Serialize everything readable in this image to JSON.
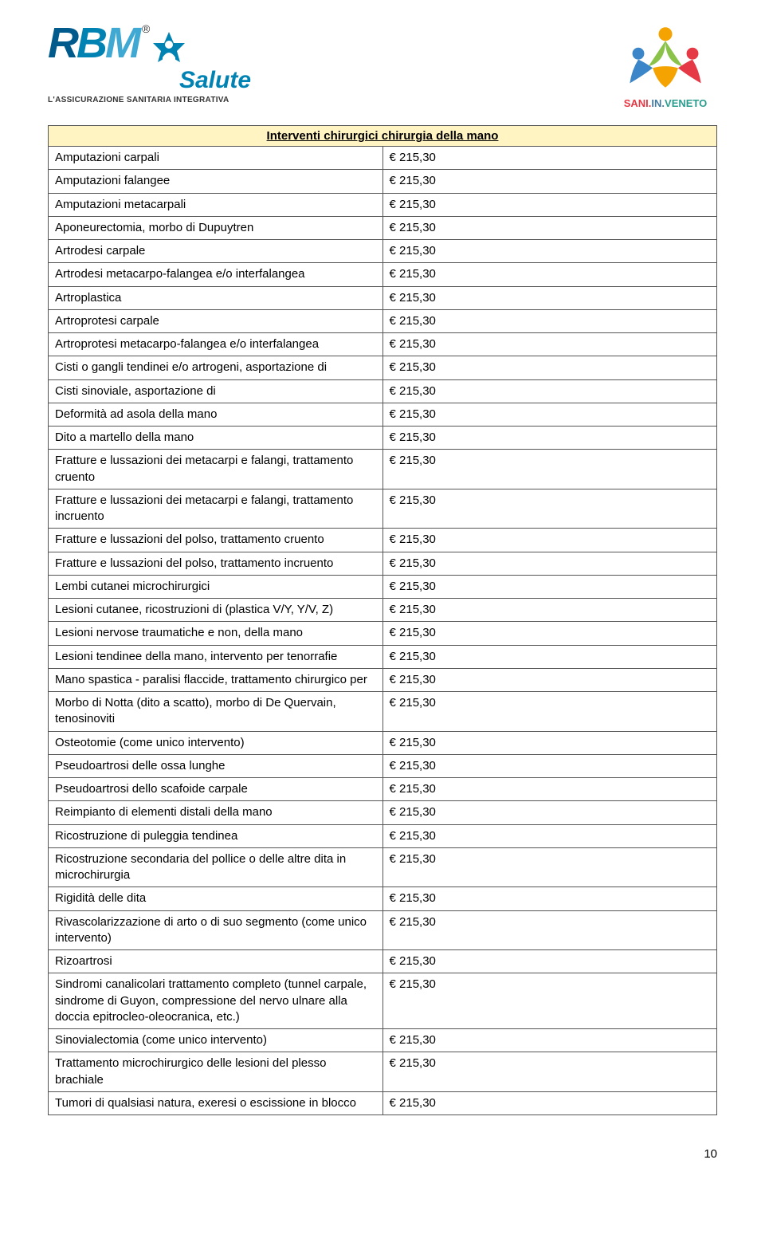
{
  "header": {
    "logo_left": {
      "letters": [
        "R",
        "B",
        "M"
      ],
      "salute": "Salute",
      "tagline": "L'ASSICURAZIONE SANITARIA INTEGRATIVA",
      "reg": "®"
    },
    "logo_right": {
      "text_parts": [
        "SANI.",
        "IN.",
        "VENETO"
      ]
    }
  },
  "table": {
    "section_title": "Interventi chirurgici chirurgia della mano",
    "col_widths": {
      "label": "auto",
      "value": "130px"
    },
    "header_bg": "#fff4c2",
    "border_color": "#555555",
    "rows": [
      {
        "label": "Amputazioni carpali",
        "value": "€ 215,30"
      },
      {
        "label": "Amputazioni falangee",
        "value": "€ 215,30"
      },
      {
        "label": "Amputazioni metacarpali",
        "value": "€ 215,30"
      },
      {
        "label": "Aponeurectomia, morbo di Dupuytren",
        "value": "€ 215,30"
      },
      {
        "label": "Artrodesi carpale",
        "value": "€ 215,30"
      },
      {
        "label": "Artrodesi metacarpo-falangea e/o interfalangea",
        "value": "€ 215,30"
      },
      {
        "label": "Artroplastica",
        "value": "€ 215,30"
      },
      {
        "label": "Artroprotesi carpale",
        "value": "€ 215,30"
      },
      {
        "label": "Artroprotesi metacarpo-falangea e/o interfalangea",
        "value": "€ 215,30"
      },
      {
        "label": "Cisti o gangli tendinei e/o artrogeni, asportazione di",
        "value": "€ 215,30"
      },
      {
        "label": "Cisti sinoviale, asportazione di",
        "value": "€ 215,30"
      },
      {
        "label": "Deformità ad asola della mano",
        "value": "€ 215,30"
      },
      {
        "label": "Dito a martello della mano",
        "value": "€ 215,30"
      },
      {
        "label": "Fratture e lussazioni dei metacarpi e falangi, trattamento cruento",
        "value": "€ 215,30"
      },
      {
        "label": "Fratture e lussazioni dei metacarpi e falangi, trattamento incruento",
        "value": "€ 215,30"
      },
      {
        "label": "Fratture e lussazioni del polso, trattamento cruento",
        "value": "€ 215,30"
      },
      {
        "label": "Fratture e lussazioni del polso, trattamento incruento",
        "value": "€ 215,30"
      },
      {
        "label": "Lembi cutanei microchirurgici",
        "value": "€ 215,30"
      },
      {
        "label": "Lesioni cutanee, ricostruzioni di (plastica V/Y, Y/V, Z)",
        "value": "€ 215,30"
      },
      {
        "label": "Lesioni nervose traumatiche e non, della mano",
        "value": "€ 215,30"
      },
      {
        "label": "Lesioni tendinee della mano, intervento per tenorrafie",
        "value": "€ 215,30"
      },
      {
        "label": "Mano spastica - paralisi flaccide, trattamento chirurgico per",
        "value": "€ 215,30"
      },
      {
        "label": "Morbo di Notta (dito a scatto), morbo di De Quervain, tenosinoviti",
        "value": "€ 215,30"
      },
      {
        "label": "Osteotomie (come unico intervento)",
        "value": "€ 215,30"
      },
      {
        "label": "Pseudoartrosi delle ossa lunghe",
        "value": "€ 215,30"
      },
      {
        "label": "Pseudoartrosi dello scafoide carpale",
        "value": "€ 215,30"
      },
      {
        "label": "Reimpianto di elementi distali della mano",
        "value": "€ 215,30"
      },
      {
        "label": "Ricostruzione di puleggia tendinea",
        "value": "€ 215,30"
      },
      {
        "label": "Ricostruzione secondaria del pollice o delle altre dita in microchirurgia",
        "value": "€ 215,30"
      },
      {
        "label": "Rigidità delle dita",
        "value": "€ 215,30"
      },
      {
        "label": "Rivascolarizzazione di arto o di suo segmento (come unico intervento)",
        "value": "€ 215,30"
      },
      {
        "label": "Rizoartrosi",
        "value": "€ 215,30"
      },
      {
        "label": "Sindromi canalicolari trattamento completo (tunnel carpale, sindrome di Guyon, compressione del nervo ulnare alla doccia epitrocleo-oleocranica, etc.)",
        "value": "€ 215,30"
      },
      {
        "label": "Sinovialectomia (come unico intervento)",
        "value": "€ 215,30"
      },
      {
        "label": "Trattamento microchirurgico delle lesioni del plesso brachiale",
        "value": "€ 215,30"
      },
      {
        "label": "Tumori di qualsiasi natura, exeresi o escissione in blocco",
        "value": "€ 215,30"
      }
    ]
  },
  "page_number": "10"
}
